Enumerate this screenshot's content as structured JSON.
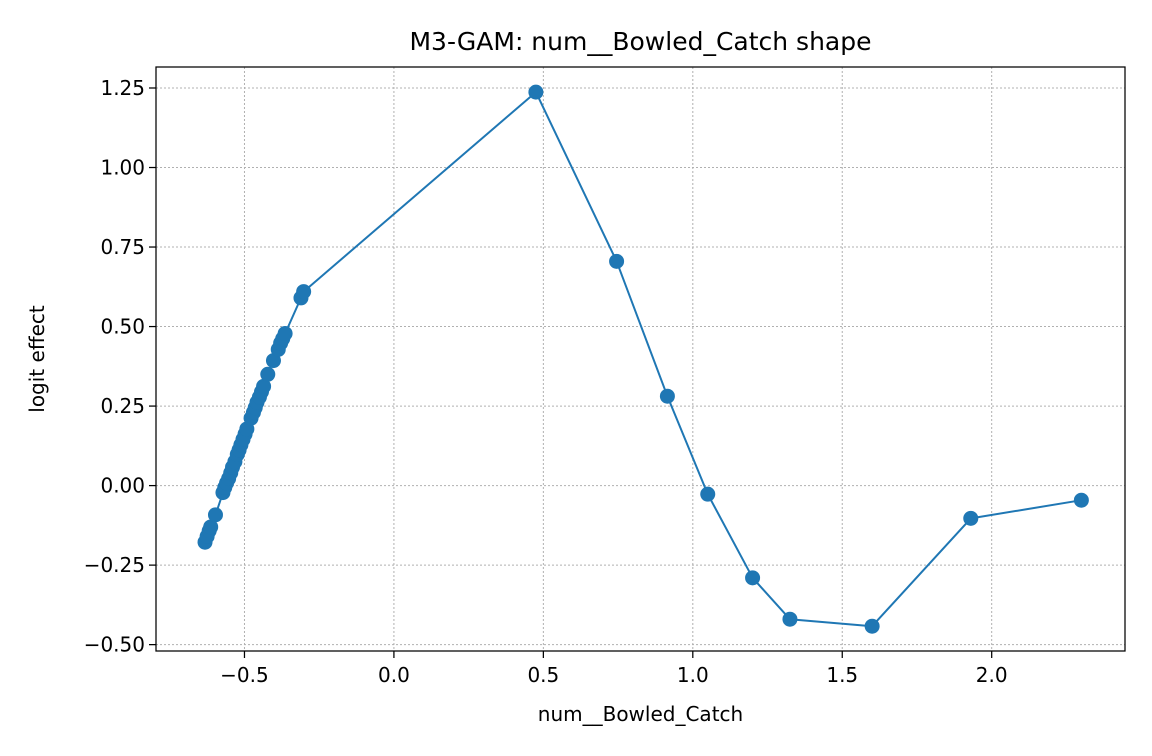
{
  "chart_data": {
    "type": "line",
    "title": "M3-GAM: num__Bowled_Catch shape",
    "xlabel": "num__Bowled_Catch",
    "ylabel": "logit effect",
    "xlim": [
      -0.796,
      2.446
    ],
    "ylim": [
      -0.52,
      1.316
    ],
    "xticks": [
      {
        "value": -0.5,
        "label": "−0.5"
      },
      {
        "value": 0.0,
        "label": "0.0"
      },
      {
        "value": 0.5,
        "label": "0.5"
      },
      {
        "value": 1.0,
        "label": "1.0"
      },
      {
        "value": 1.5,
        "label": "1.5"
      },
      {
        "value": 2.0,
        "label": "2.0"
      }
    ],
    "yticks": [
      {
        "value": -0.5,
        "label": "−0.50"
      },
      {
        "value": -0.25,
        "label": "−0.25"
      },
      {
        "value": 0.0,
        "label": "0.00"
      },
      {
        "value": 0.25,
        "label": "0.25"
      },
      {
        "value": 0.5,
        "label": "0.50"
      },
      {
        "value": 0.75,
        "label": "0.75"
      },
      {
        "value": 1.0,
        "label": "1.00"
      },
      {
        "value": 1.25,
        "label": "1.25"
      }
    ],
    "grid": true,
    "legend": "none",
    "series": [
      {
        "color": "#1f77b4",
        "marker": "circle",
        "points": [
          [
            -0.632,
            -0.178
          ],
          [
            -0.625,
            -0.16
          ],
          [
            -0.618,
            -0.142
          ],
          [
            -0.613,
            -0.13
          ],
          [
            -0.597,
            -0.092
          ],
          [
            -0.572,
            -0.022
          ],
          [
            -0.566,
            -0.006
          ],
          [
            -0.56,
            0.008
          ],
          [
            -0.553,
            0.022
          ],
          [
            -0.546,
            0.04
          ],
          [
            -0.54,
            0.058
          ],
          [
            -0.532,
            0.075
          ],
          [
            -0.524,
            0.098
          ],
          [
            -0.518,
            0.112
          ],
          [
            -0.512,
            0.128
          ],
          [
            -0.505,
            0.145
          ],
          [
            -0.498,
            0.162
          ],
          [
            -0.492,
            0.178
          ],
          [
            -0.478,
            0.212
          ],
          [
            -0.47,
            0.23
          ],
          [
            -0.464,
            0.245
          ],
          [
            -0.458,
            0.262
          ],
          [
            -0.45,
            0.278
          ],
          [
            -0.443,
            0.295
          ],
          [
            -0.436,
            0.312
          ],
          [
            -0.422,
            0.35
          ],
          [
            -0.403,
            0.393
          ],
          [
            -0.387,
            0.428
          ],
          [
            -0.379,
            0.448
          ],
          [
            -0.372,
            0.462
          ],
          [
            -0.364,
            0.478
          ],
          [
            -0.311,
            0.59
          ],
          [
            -0.302,
            0.61
          ],
          [
            0.475,
            1.237
          ],
          [
            0.745,
            0.705
          ],
          [
            0.915,
            0.281
          ],
          [
            1.05,
            -0.027
          ],
          [
            1.2,
            -0.29
          ],
          [
            1.325,
            -0.42
          ],
          [
            1.6,
            -0.442
          ],
          [
            1.93,
            -0.103
          ],
          [
            2.3,
            -0.046
          ]
        ]
      }
    ]
  }
}
